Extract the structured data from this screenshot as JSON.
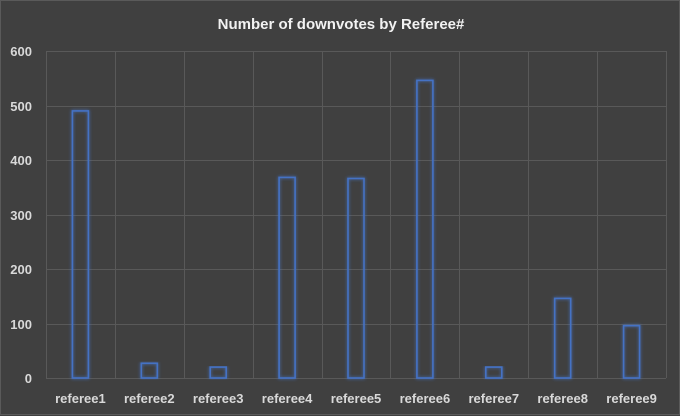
{
  "chart_data": {
    "type": "bar",
    "title": "Number of downvotes by Referee#",
    "xlabel": "",
    "ylabel": "",
    "categories": [
      "referee1",
      "referee2",
      "referee3",
      "referee4",
      "referee5",
      "referee6",
      "referee7",
      "referee8",
      "referee9"
    ],
    "values": [
      490,
      27,
      20,
      368,
      366,
      546,
      20,
      146,
      96
    ],
    "ylim": [
      0,
      600
    ],
    "yticks": [
      0,
      100,
      200,
      300,
      400,
      500,
      600
    ],
    "grid": true,
    "legend": "none",
    "colors": {
      "background": "#404040",
      "bar_outline": "#4472c4",
      "bar_glow": "#2f5597",
      "grid": "#595959",
      "text": "#d9d9d9",
      "title": "#f2f2f2"
    }
  }
}
